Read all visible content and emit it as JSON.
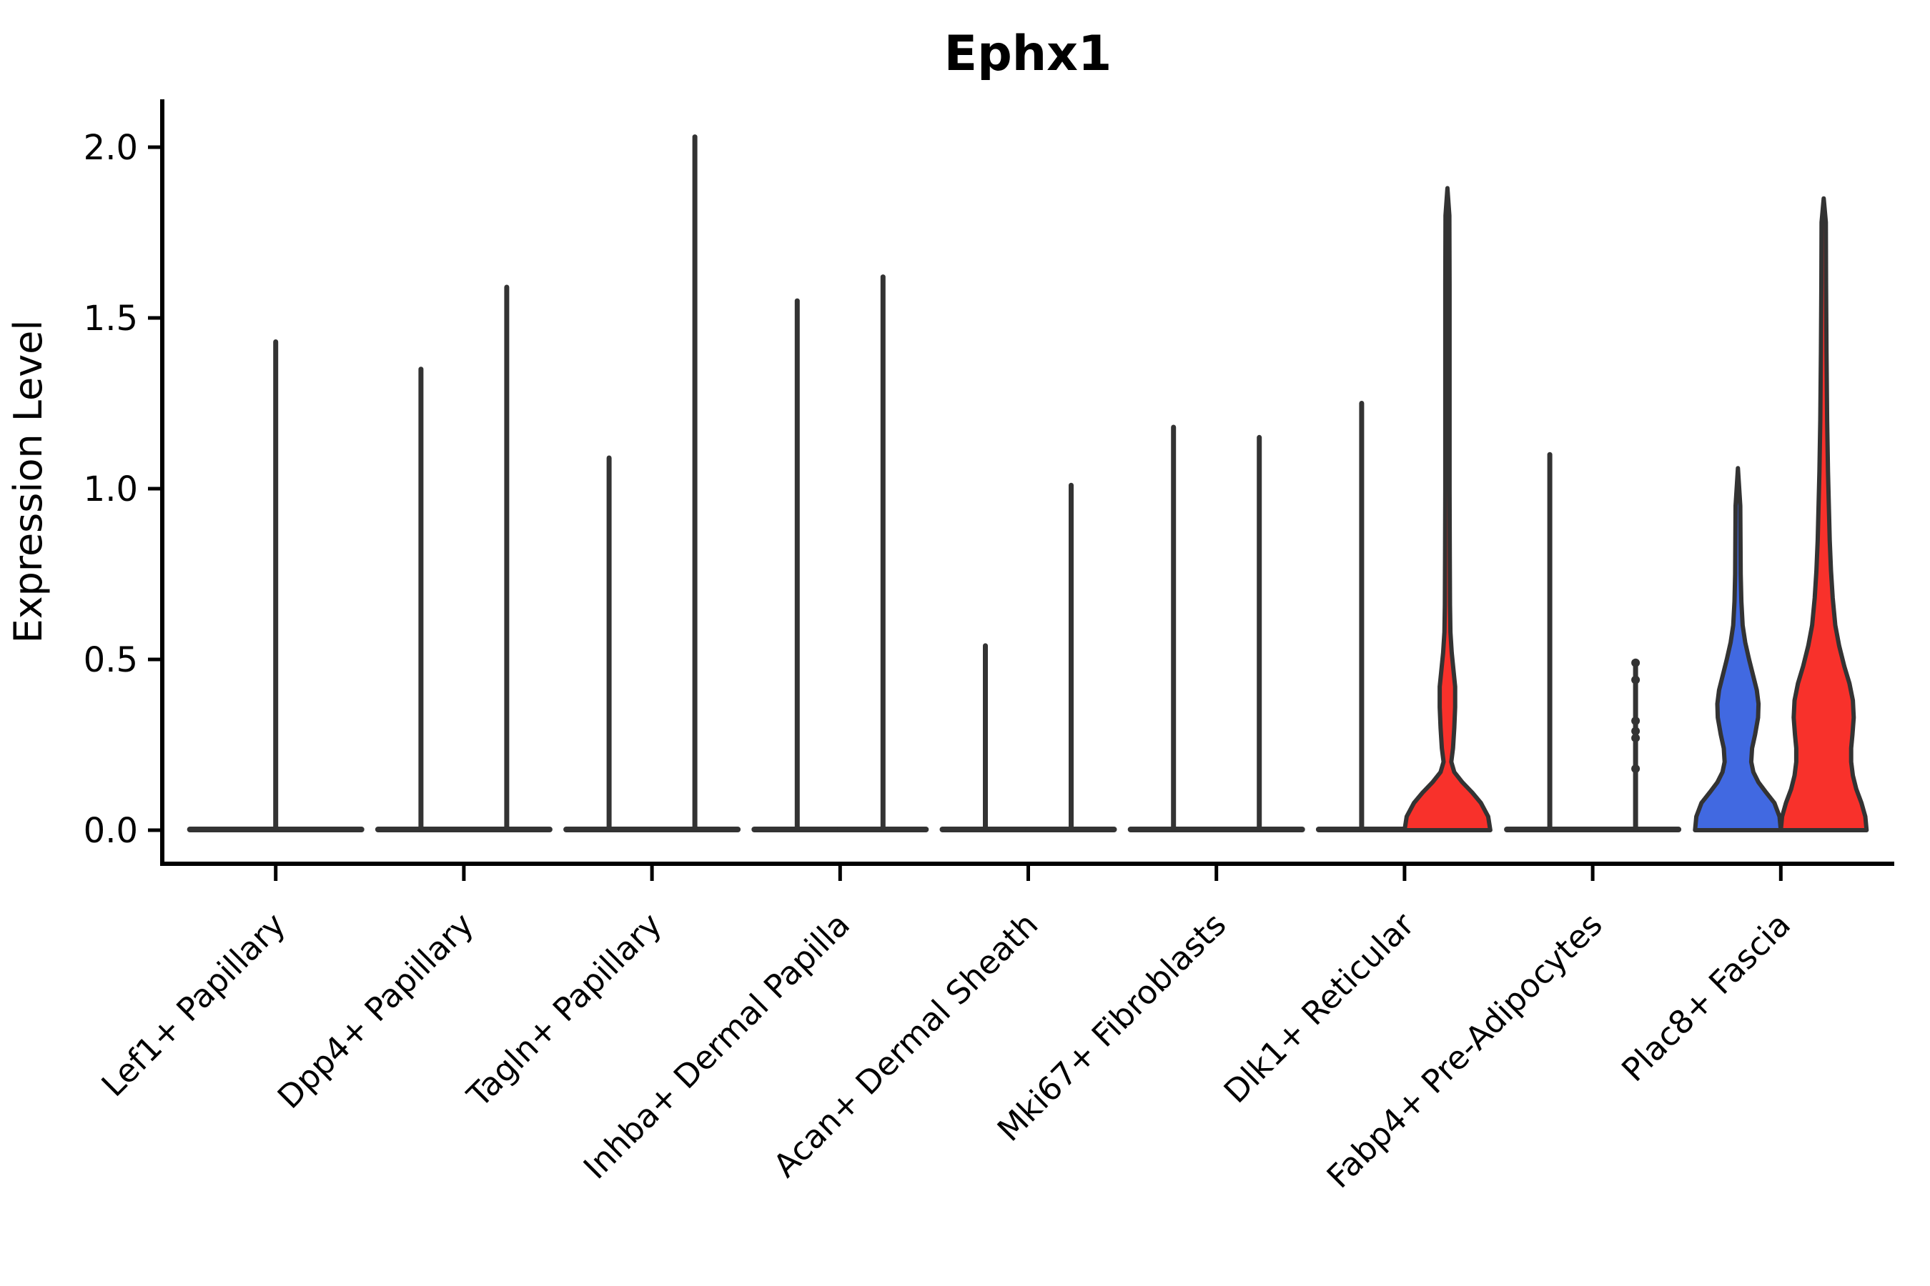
{
  "chart_data": {
    "type": "violin",
    "title": "Ephx1",
    "ylabel": "Expression Level",
    "xlabel": "",
    "yticks": [
      0.0,
      0.5,
      1.0,
      1.5,
      2.0
    ],
    "ytick_labels": [
      "0.0",
      "0.5",
      "1.0",
      "1.5",
      "2.0"
    ],
    "ylim": [
      -0.1,
      2.14
    ],
    "grid": false,
    "legend": "none",
    "colors": {
      "blue": "#4169E1",
      "red": "#F8312B",
      "collapsed_line": "#333333",
      "outline": "#333333",
      "axis": "#000000"
    },
    "categories": [
      "Lef1+ Papillary",
      "Dpp4+ Papillary",
      "Tagln+ Papillary",
      "Inhba+ Dermal Papilla",
      "Acan+ Dermal Sheath",
      "Mki67+ Fibroblasts",
      "Dlk1+ Reticular",
      "Fabp4+ Pre-Adipocytes",
      "Plac8+ Fascia"
    ],
    "violins": [
      {
        "category": "Lef1+ Papillary",
        "items": [
          {
            "side": "center",
            "max": 1.43,
            "shape": "collapsed",
            "width_slots": 2
          }
        ]
      },
      {
        "category": "Dpp4+ Papillary",
        "items": [
          {
            "side": "left",
            "max": 1.35,
            "shape": "collapsed"
          },
          {
            "side": "right",
            "max": 1.59,
            "shape": "collapsed"
          }
        ]
      },
      {
        "category": "Tagln+ Papillary",
        "items": [
          {
            "side": "left",
            "max": 1.09,
            "shape": "collapsed"
          },
          {
            "side": "right",
            "max": 2.03,
            "shape": "collapsed"
          }
        ]
      },
      {
        "category": "Inhba+ Dermal Papilla",
        "items": [
          {
            "side": "left",
            "max": 1.55,
            "shape": "collapsed"
          },
          {
            "side": "right",
            "max": 1.62,
            "shape": "collapsed"
          }
        ]
      },
      {
        "category": "Acan+ Dermal Sheath",
        "items": [
          {
            "side": "left",
            "max": 0.54,
            "shape": "collapsed"
          },
          {
            "side": "right",
            "max": 1.01,
            "shape": "collapsed"
          }
        ]
      },
      {
        "category": "Mki67+ Fibroblasts",
        "items": [
          {
            "side": "left",
            "max": 1.18,
            "shape": "collapsed"
          },
          {
            "side": "right",
            "max": 1.15,
            "shape": "collapsed"
          }
        ]
      },
      {
        "category": "Dlk1+ Reticular",
        "items": [
          {
            "side": "left",
            "max": 1.25,
            "shape": "collapsed"
          },
          {
            "side": "right",
            "max": 1.88,
            "shape": "profile",
            "fill": "red",
            "profile": [
              [
                0,
                1.0
              ],
              [
                0.04,
                0.95
              ],
              [
                0.08,
                0.78
              ],
              [
                0.11,
                0.58
              ],
              [
                0.14,
                0.35
              ],
              [
                0.17,
                0.16
              ],
              [
                0.2,
                0.09
              ],
              [
                0.24,
                0.13
              ],
              [
                0.3,
                0.16
              ],
              [
                0.36,
                0.18
              ],
              [
                0.42,
                0.18
              ],
              [
                0.47,
                0.14
              ],
              [
                0.52,
                0.1
              ],
              [
                0.58,
                0.07
              ],
              [
                0.66,
                0.06
              ],
              [
                0.8,
                0.055
              ],
              [
                1.0,
                0.05
              ],
              [
                1.3,
                0.05
              ],
              [
                1.6,
                0.05
              ],
              [
                1.8,
                0.045
              ],
              [
                1.88,
                0
              ]
            ]
          }
        ]
      },
      {
        "category": "Fabp4+ Pre-Adipocytes",
        "items": [
          {
            "side": "left",
            "max": 1.1,
            "shape": "collapsed"
          },
          {
            "side": "right",
            "max": 0.49,
            "shape": "collapsed",
            "points": [
              0.49,
              0.44,
              0.32,
              0.29,
              0.27,
              0.18
            ]
          }
        ]
      },
      {
        "category": "Plac8+ Fascia",
        "items": [
          {
            "side": "left",
            "max": 1.06,
            "shape": "profile",
            "fill": "blue",
            "profile": [
              [
                0,
                1.0
              ],
              [
                0.04,
                0.97
              ],
              [
                0.08,
                0.85
              ],
              [
                0.11,
                0.66
              ],
              [
                0.14,
                0.48
              ],
              [
                0.17,
                0.36
              ],
              [
                0.2,
                0.31
              ],
              [
                0.24,
                0.33
              ],
              [
                0.28,
                0.4
              ],
              [
                0.33,
                0.47
              ],
              [
                0.37,
                0.48
              ],
              [
                0.41,
                0.44
              ],
              [
                0.45,
                0.36
              ],
              [
                0.5,
                0.26
              ],
              [
                0.55,
                0.17
              ],
              [
                0.6,
                0.11
              ],
              [
                0.67,
                0.08
              ],
              [
                0.75,
                0.065
              ],
              [
                0.85,
                0.06
              ],
              [
                0.95,
                0.055
              ],
              [
                1.06,
                0
              ]
            ]
          },
          {
            "side": "right",
            "max": 1.85,
            "shape": "profile",
            "fill": "red",
            "profile": [
              [
                0,
                1.0
              ],
              [
                0.04,
                0.97
              ],
              [
                0.08,
                0.88
              ],
              [
                0.12,
                0.76
              ],
              [
                0.16,
                0.68
              ],
              [
                0.2,
                0.64
              ],
              [
                0.24,
                0.64
              ],
              [
                0.28,
                0.67
              ],
              [
                0.33,
                0.7
              ],
              [
                0.38,
                0.68
              ],
              [
                0.43,
                0.6
              ],
              [
                0.48,
                0.48
              ],
              [
                0.54,
                0.36
              ],
              [
                0.6,
                0.27
              ],
              [
                0.68,
                0.21
              ],
              [
                0.76,
                0.17
              ],
              [
                0.85,
                0.14
              ],
              [
                0.95,
                0.12
              ],
              [
                1.05,
                0.1
              ],
              [
                1.2,
                0.08
              ],
              [
                1.4,
                0.065
              ],
              [
                1.6,
                0.055
              ],
              [
                1.78,
                0.05
              ],
              [
                1.85,
                0
              ]
            ]
          }
        ]
      }
    ]
  }
}
